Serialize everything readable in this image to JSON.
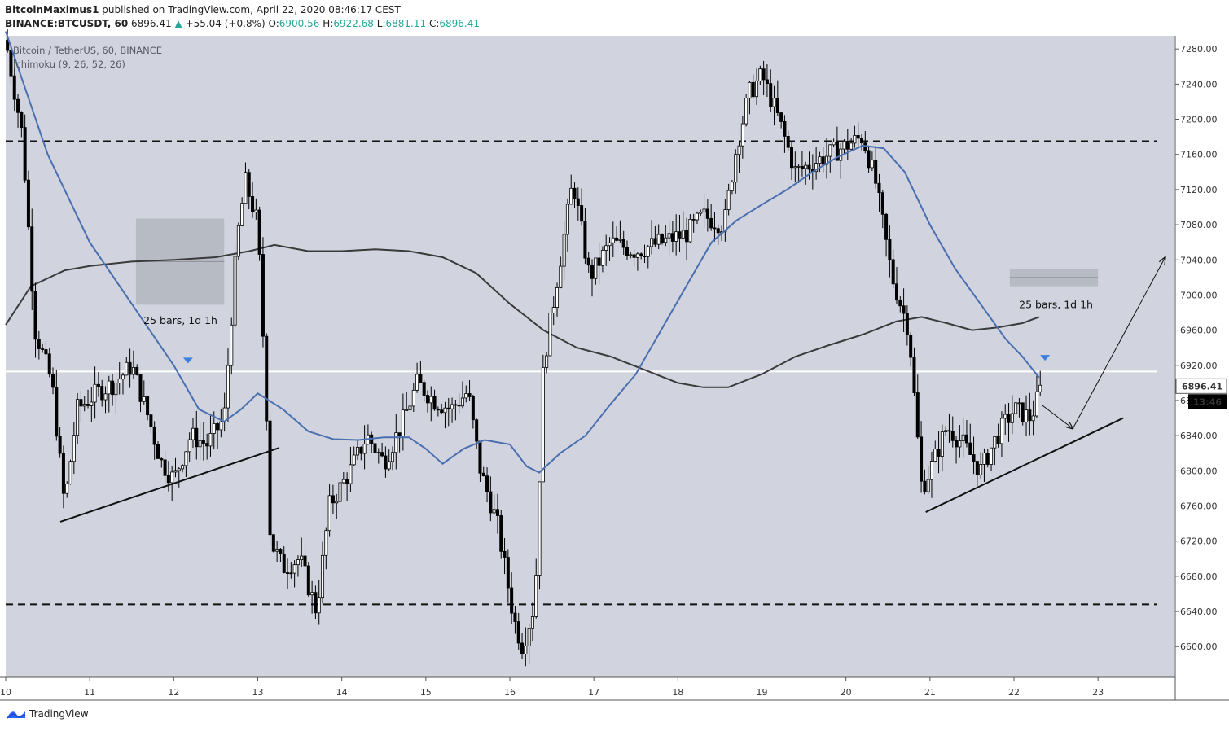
{
  "header": {
    "author": "BitcoinMaximus1",
    "published": "published on TradingView.com, April 22, 2020 08:46:17 CEST"
  },
  "ohlc": {
    "symbol": "BINANCE:BTCUSDT, 60",
    "last": "6896.41",
    "change": "+55.04 (+0.8%)",
    "o_label": "O:",
    "o": "6900.56",
    "h_label": "H:",
    "h": "6922.68",
    "l_label": "L:",
    "l": "6881.11",
    "c_label": "C:",
    "c": "6896.41"
  },
  "legend": {
    "title": "Bitcoin / TetherUS, 60, BINANCE",
    "indicator": "Ichimoku (9, 26, 52, 26)"
  },
  "footer": {
    "brand": "TradingView"
  },
  "colors": {
    "plot_bg": "#d1d4de",
    "candle": "#000000",
    "conversion_line": "#4a6fb0",
    "base_line": "#3a3a3a",
    "horizontal_line": "#ffffff",
    "price_tag_bg": "#ffffff",
    "time_tag_bg": "#000000",
    "marker": "#3d7fe0"
  },
  "chart_data": {
    "type": "candlestick",
    "x_axis_labels": [
      "10",
      "11",
      "12",
      "13",
      "14",
      "15",
      "16",
      "17",
      "18",
      "19",
      "20",
      "21",
      "22",
      "23"
    ],
    "x_range_days": [
      10.0,
      23.9
    ],
    "ylim": [
      6565,
      7295
    ],
    "y_ticks": [
      6600,
      6640,
      6680,
      6720,
      6760,
      6800,
      6840,
      6880,
      6920,
      6960,
      7000,
      7040,
      7080,
      7120,
      7160,
      7200,
      7240,
      7280
    ],
    "y_tick_labels": [
      "6600.00",
      "6640.00",
      "6680.00",
      "6720.00",
      "6760.00",
      "6800.00",
      "6840.00",
      "6880.00",
      "6920.00",
      "6960.00",
      "7000.00",
      "7040.00",
      "7080.00",
      "7120.00",
      "7160.00",
      "7200.00",
      "7240.00",
      "7280.00"
    ],
    "last_price_label": "6896.41",
    "countdown_label": "13:46",
    "price_path": [
      [
        10.0,
        7290
      ],
      [
        10.2,
        7180
      ],
      [
        10.35,
        6960
      ],
      [
        10.55,
        6900
      ],
      [
        10.7,
        6760
      ],
      [
        10.85,
        6870
      ],
      [
        11.1,
        6890
      ],
      [
        11.3,
        6900
      ],
      [
        11.5,
        6920
      ],
      [
        11.7,
        6860
      ],
      [
        11.85,
        6810
      ],
      [
        12.0,
        6790
      ],
      [
        12.2,
        6840
      ],
      [
        12.4,
        6830
      ],
      [
        12.6,
        6860
      ],
      [
        12.75,
        7060
      ],
      [
        12.85,
        7130
      ],
      [
        13.0,
        7080
      ],
      [
        13.1,
        6880
      ],
      [
        13.15,
        6720
      ],
      [
        13.3,
        6690
      ],
      [
        13.5,
        6700
      ],
      [
        13.7,
        6640
      ],
      [
        13.85,
        6760
      ],
      [
        14.1,
        6800
      ],
      [
        14.3,
        6840
      ],
      [
        14.5,
        6810
      ],
      [
        14.7,
        6850
      ],
      [
        14.9,
        6900
      ],
      [
        15.1,
        6880
      ],
      [
        15.3,
        6870
      ],
      [
        15.5,
        6890
      ],
      [
        15.65,
        6800
      ],
      [
        15.85,
        6740
      ],
      [
        16.05,
        6630
      ],
      [
        16.15,
        6600
      ],
      [
        16.3,
        6650
      ],
      [
        16.4,
        6920
      ],
      [
        16.55,
        7010
      ],
      [
        16.75,
        7130
      ],
      [
        16.95,
        7020
      ],
      [
        17.2,
        7060
      ],
      [
        17.5,
        7050
      ],
      [
        17.8,
        7060
      ],
      [
        18.1,
        7070
      ],
      [
        18.3,
        7090
      ],
      [
        18.55,
        7080
      ],
      [
        18.7,
        7170
      ],
      [
        18.85,
        7230
      ],
      [
        19.0,
        7250
      ],
      [
        19.2,
        7200
      ],
      [
        19.4,
        7140
      ],
      [
        19.6,
        7150
      ],
      [
        19.8,
        7160
      ],
      [
        20.0,
        7170
      ],
      [
        20.2,
        7180
      ],
      [
        20.35,
        7130
      ],
      [
        20.55,
        7020
      ],
      [
        20.75,
        6960
      ],
      [
        20.9,
        6780
      ],
      [
        21.0,
        6800
      ],
      [
        21.2,
        6850
      ],
      [
        21.4,
        6830
      ],
      [
        21.6,
        6800
      ],
      [
        21.8,
        6840
      ],
      [
        22.0,
        6870
      ],
      [
        22.2,
        6860
      ],
      [
        22.33,
        6896.41
      ]
    ],
    "conversion_line": [
      [
        10.0,
        7300
      ],
      [
        10.5,
        7160
      ],
      [
        11.0,
        7060
      ],
      [
        11.5,
        6990
      ],
      [
        12.0,
        6920
      ],
      [
        12.3,
        6870
      ],
      [
        12.6,
        6856
      ],
      [
        12.8,
        6870
      ],
      [
        13.0,
        6888
      ],
      [
        13.3,
        6870
      ],
      [
        13.6,
        6845
      ],
      [
        13.9,
        6836
      ],
      [
        14.2,
        6835
      ],
      [
        14.5,
        6838
      ],
      [
        14.8,
        6838
      ],
      [
        15.0,
        6825
      ],
      [
        15.2,
        6808
      ],
      [
        15.45,
        6825
      ],
      [
        15.7,
        6835
      ],
      [
        16.0,
        6830
      ],
      [
        16.2,
        6805
      ],
      [
        16.35,
        6798
      ],
      [
        16.6,
        6820
      ],
      [
        16.9,
        6840
      ],
      [
        17.2,
        6876
      ],
      [
        17.5,
        6910
      ],
      [
        17.8,
        6960
      ],
      [
        18.1,
        7010
      ],
      [
        18.4,
        7060
      ],
      [
        18.7,
        7085
      ],
      [
        19.0,
        7103
      ],
      [
        19.3,
        7120
      ],
      [
        19.6,
        7140
      ],
      [
        19.9,
        7157
      ],
      [
        20.2,
        7170
      ],
      [
        20.45,
        7167
      ],
      [
        20.7,
        7140
      ],
      [
        21.0,
        7080
      ],
      [
        21.3,
        7030
      ],
      [
        21.6,
        6990
      ],
      [
        21.9,
        6950
      ],
      [
        22.1,
        6930
      ],
      [
        22.3,
        6906
      ]
    ],
    "base_line": [
      [
        10.0,
        6966
      ],
      [
        10.3,
        7010
      ],
      [
        10.7,
        7028
      ],
      [
        11.0,
        7033
      ],
      [
        11.5,
        7038
      ],
      [
        12.0,
        7040
      ],
      [
        12.5,
        7043
      ],
      [
        12.9,
        7050
      ],
      [
        13.2,
        7057
      ],
      [
        13.6,
        7050
      ],
      [
        14.0,
        7050
      ],
      [
        14.4,
        7052
      ],
      [
        14.8,
        7050
      ],
      [
        15.2,
        7043
      ],
      [
        15.6,
        7025
      ],
      [
        16.0,
        6990
      ],
      [
        16.4,
        6960
      ],
      [
        16.8,
        6940
      ],
      [
        17.2,
        6930
      ],
      [
        17.6,
        6915
      ],
      [
        18.0,
        6900
      ],
      [
        18.3,
        6895
      ],
      [
        18.6,
        6895
      ],
      [
        19.0,
        6910
      ],
      [
        19.4,
        6930
      ],
      [
        19.8,
        6943
      ],
      [
        20.2,
        6955
      ],
      [
        20.6,
        6970
      ],
      [
        20.9,
        6975
      ],
      [
        21.2,
        6968
      ],
      [
        21.5,
        6960
      ],
      [
        21.8,
        6963
      ],
      [
        22.1,
        6968
      ],
      [
        22.3,
        6975
      ]
    ],
    "horizontal_levels": [
      {
        "price": 7175,
        "style": "dashed",
        "x_from": 10.0,
        "x_to": 23.7
      },
      {
        "price": 6648,
        "style": "dashed",
        "x_from": 10.0,
        "x_to": 23.7
      },
      {
        "price": 6913,
        "style": "solid-white",
        "x_from": 10.0,
        "x_to": 23.7
      }
    ],
    "trendlines": [
      {
        "from": [
          10.65,
          6742
        ],
        "to": [
          13.25,
          6826
        ],
        "width": 2
      },
      {
        "from": [
          20.95,
          6753
        ],
        "to": [
          23.3,
          6860
        ],
        "width": 2
      },
      {
        "from": [
          22.33,
          6875
        ],
        "to": [
          22.7,
          6848
        ],
        "width": 1,
        "arrow": true
      },
      {
        "from": [
          22.7,
          6848
        ],
        "to": [
          23.8,
          7043
        ],
        "width": 1,
        "arrow": true
      }
    ],
    "shaded_boxes": [
      {
        "x": [
          11.55,
          12.6
        ],
        "price": [
          6989,
          7087
        ]
      },
      {
        "x": [
          21.95,
          23.0
        ],
        "price": [
          7010,
          7030
        ]
      }
    ],
    "projection_labels": [
      {
        "text": "25 bars, 1d 1h",
        "at": [
          12.08,
          6967
        ]
      },
      {
        "text": "25 bars, 1d 1h",
        "at": [
          22.5,
          6985
        ]
      }
    ],
    "markers": [
      {
        "at": [
          12.17,
          6925
        ]
      },
      {
        "at": [
          22.37,
          6928
        ]
      }
    ]
  }
}
